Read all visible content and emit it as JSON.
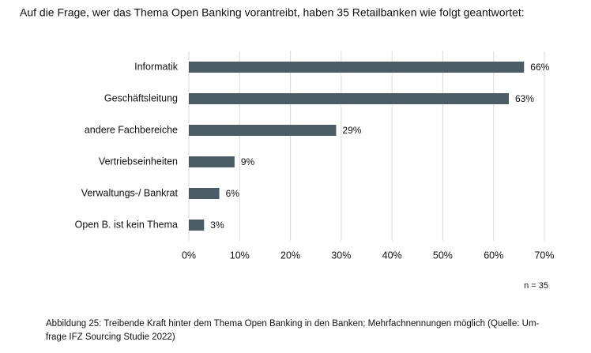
{
  "chart_data": {
    "type": "barh",
    "title": "Auf die Frage, wer das Thema Open Banking vorantreibt, haben 35 Retailbanken wie folgt geantwortet:",
    "categories": [
      "Informatik",
      "Geschäftsleitung",
      "andere Fachbereiche",
      "Vertriebseinheiten",
      "Verwaltungs-/ Bankrat",
      "Open B. ist kein Thema"
    ],
    "values": [
      66,
      63,
      29,
      9,
      6,
      3
    ],
    "value_labels": [
      "66%",
      "63%",
      "29%",
      "9%",
      "6%",
      "3%"
    ],
    "color": "#4a5d65",
    "xlim": [
      0,
      70
    ],
    "xticks": [
      {
        "value": 0,
        "label": "0%"
      },
      {
        "value": 10,
        "label": "10%"
      },
      {
        "value": 20,
        "label": "20%"
      },
      {
        "value": 30,
        "label": "30%"
      },
      {
        "value": 40,
        "label": "40%"
      },
      {
        "value": 50,
        "label": "50%"
      },
      {
        "value": 60,
        "label": "60%"
      },
      {
        "value": 70,
        "label": "70%"
      }
    ],
    "grid": true,
    "note": "n = 35",
    "caption": [
      "Abbildung 25: Treibende Kraft hinter dem Thema Open Banking in den Banken; Mehrfachnennungen möglich (Quelle: Um-",
      "frage IFZ Sourcing Studie 2022)"
    ]
  }
}
